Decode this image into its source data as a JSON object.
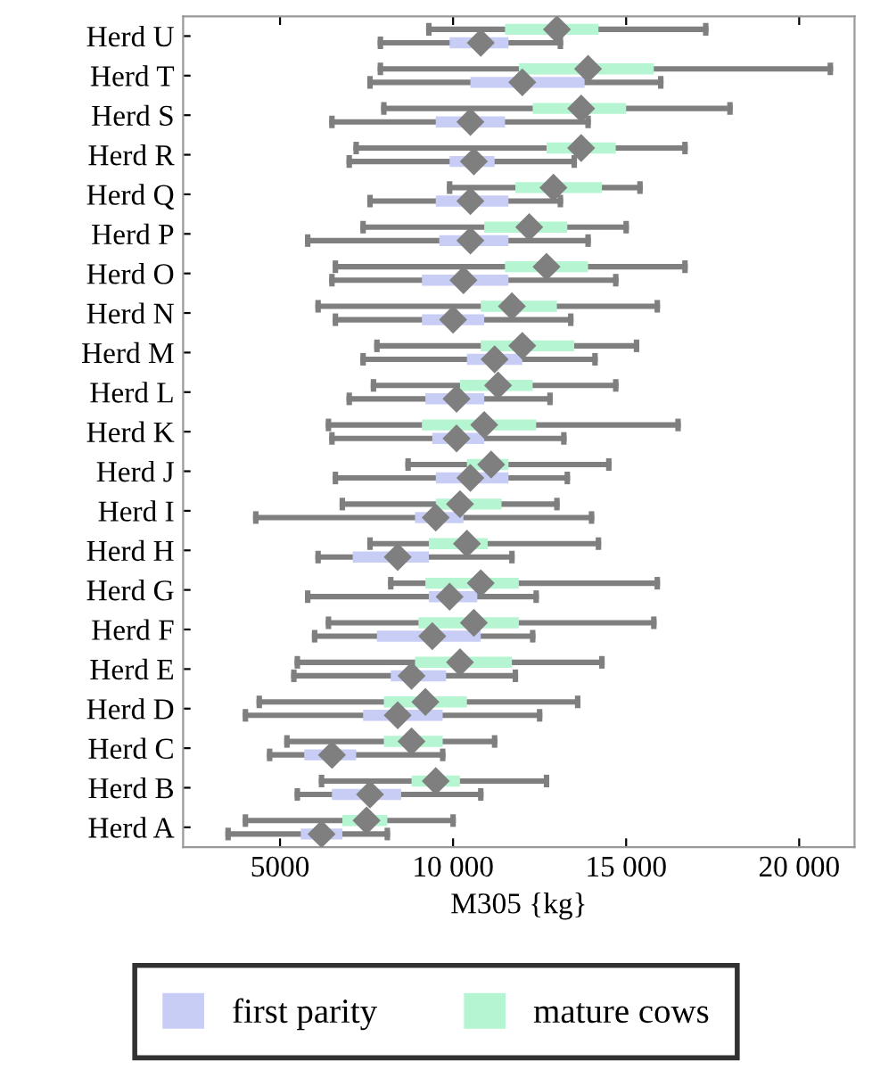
{
  "chart_data": {
    "type": "box",
    "orientation": "horizontal",
    "xlabel": "M305 {kg}",
    "categories": [
      "Herd U",
      "Herd T",
      "Herd S",
      "Herd R",
      "Herd Q",
      "Herd P",
      "Herd O",
      "Herd N",
      "Herd M",
      "Herd L",
      "Herd K",
      "Herd J",
      "Herd I",
      "Herd H",
      "Herd G",
      "Herd F",
      "Herd E",
      "Herd D",
      "Herd C",
      "Herd B",
      "Herd A"
    ],
    "xlim": [
      2200,
      21600
    ],
    "xticks": [
      5000,
      {
        "value": 10000,
        "label": "10 000"
      },
      {
        "value": 15000,
        "label": "15 000"
      },
      {
        "value": 20000,
        "label": "20 000"
      }
    ],
    "grid": false,
    "legend": "bottom",
    "marker": "diamond",
    "series": [
      {
        "name": "first parity",
        "color": "#c8cdf5",
        "boxes": [
          {
            "low": 7900,
            "q1": 9900,
            "median": 10800,
            "q3": 11600,
            "high": 13100
          },
          {
            "low": 7600,
            "q1": 10500,
            "median": 12000,
            "q3": 13800,
            "high": 16000
          },
          {
            "low": 6500,
            "q1": 9500,
            "median": 10500,
            "q3": 11500,
            "high": 13900
          },
          {
            "low": 7000,
            "q1": 9900,
            "median": 10600,
            "q3": 11200,
            "high": 13500
          },
          {
            "low": 7600,
            "q1": 9500,
            "median": 10500,
            "q3": 11600,
            "high": 13100
          },
          {
            "low": 5800,
            "q1": 9600,
            "median": 10500,
            "q3": 11600,
            "high": 13900
          },
          {
            "low": 6500,
            "q1": 9100,
            "median": 10300,
            "q3": 11600,
            "high": 14700
          },
          {
            "low": 6600,
            "q1": 9100,
            "median": 10000,
            "q3": 10900,
            "high": 13400
          },
          {
            "low": 7400,
            "q1": 10400,
            "median": 11200,
            "q3": 12000,
            "high": 14100
          },
          {
            "low": 7000,
            "q1": 9200,
            "median": 10100,
            "q3": 10900,
            "high": 12800
          },
          {
            "low": 6500,
            "q1": 9400,
            "median": 10100,
            "q3": 10900,
            "high": 13200
          },
          {
            "low": 6600,
            "q1": 9500,
            "median": 10500,
            "q3": 11600,
            "high": 13300
          },
          {
            "low": 4300,
            "q1": 8900,
            "median": 9500,
            "q3": 10300,
            "high": 14000
          },
          {
            "low": 6100,
            "q1": 7100,
            "median": 8400,
            "q3": 9300,
            "high": 11700
          },
          {
            "low": 5800,
            "q1": 9300,
            "median": 9900,
            "q3": 10700,
            "high": 12400
          },
          {
            "low": 6000,
            "q1": 7800,
            "median": 9400,
            "q3": 10800,
            "high": 12300
          },
          {
            "low": 5400,
            "q1": 8200,
            "median": 8800,
            "q3": 9800,
            "high": 11800
          },
          {
            "low": 4000,
            "q1": 7400,
            "median": 8400,
            "q3": 9700,
            "high": 12500
          },
          {
            "low": 4700,
            "q1": 5700,
            "median": 6500,
            "q3": 7200,
            "high": 9700
          },
          {
            "low": 5500,
            "q1": 6500,
            "median": 7600,
            "q3": 8500,
            "high": 10800
          },
          {
            "low": 3500,
            "q1": 5600,
            "median": 6200,
            "q3": 6800,
            "high": 8100
          }
        ]
      },
      {
        "name": "mature cows",
        "color": "#b5f5d2",
        "boxes": [
          {
            "low": 9300,
            "q1": 11500,
            "median": 13000,
            "q3": 14200,
            "high": 17300
          },
          {
            "low": 7900,
            "q1": 11900,
            "median": 13900,
            "q3": 15800,
            "high": 20900
          },
          {
            "low": 8000,
            "q1": 12300,
            "median": 13700,
            "q3": 15000,
            "high": 18000
          },
          {
            "low": 7200,
            "q1": 12700,
            "median": 13700,
            "q3": 14700,
            "high": 16700
          },
          {
            "low": 9900,
            "q1": 11800,
            "median": 12900,
            "q3": 14300,
            "high": 15400
          },
          {
            "low": 7400,
            "q1": 10900,
            "median": 12200,
            "q3": 13300,
            "high": 15000
          },
          {
            "low": 6600,
            "q1": 11500,
            "median": 12700,
            "q3": 13900,
            "high": 16700
          },
          {
            "low": 6100,
            "q1": 10800,
            "median": 11700,
            "q3": 13000,
            "high": 15900
          },
          {
            "low": 7800,
            "q1": 10800,
            "median": 12000,
            "q3": 13500,
            "high": 15300
          },
          {
            "low": 7700,
            "q1": 10200,
            "median": 11300,
            "q3": 12300,
            "high": 14700
          },
          {
            "low": 6400,
            "q1": 9100,
            "median": 10900,
            "q3": 12400,
            "high": 16500
          },
          {
            "low": 8700,
            "q1": 10400,
            "median": 11100,
            "q3": 11600,
            "high": 14500
          },
          {
            "low": 6800,
            "q1": 9500,
            "median": 10200,
            "q3": 11400,
            "high": 13000
          },
          {
            "low": 7600,
            "q1": 9300,
            "median": 10400,
            "q3": 11000,
            "high": 14200
          },
          {
            "low": 8200,
            "q1": 9200,
            "median": 10800,
            "q3": 11900,
            "high": 15900
          },
          {
            "low": 6400,
            "q1": 9000,
            "median": 10600,
            "q3": 11900,
            "high": 15800
          },
          {
            "low": 5500,
            "q1": 8900,
            "median": 10200,
            "q3": 11700,
            "high": 14300
          },
          {
            "low": 4400,
            "q1": 8000,
            "median": 9200,
            "q3": 10400,
            "high": 13600
          },
          {
            "low": 5200,
            "q1": 8000,
            "median": 8800,
            "q3": 9700,
            "high": 11200
          },
          {
            "low": 6200,
            "q1": 8800,
            "median": 9500,
            "q3": 10200,
            "high": 12700
          },
          {
            "low": 4000,
            "q1": 6800,
            "median": 7500,
            "q3": 8100,
            "high": 10000
          }
        ]
      }
    ]
  }
}
